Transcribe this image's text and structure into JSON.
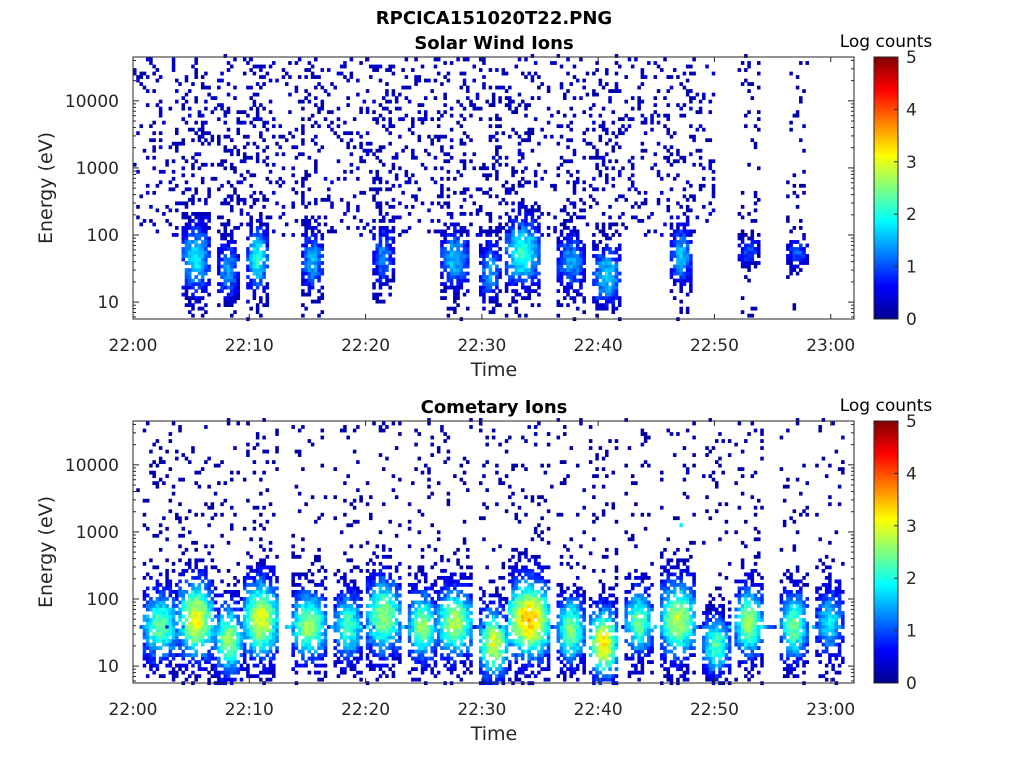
{
  "figure_title": "RPCICA151020T22.PNG",
  "chart_data": [
    {
      "type": "heatmap",
      "title": "Solar Wind Ions",
      "xlabel": "Time",
      "ylabel": "Energy (eV)",
      "x_tick_labels": [
        "22:00",
        "22:10",
        "22:20",
        "22:30",
        "22:40",
        "22:50",
        "23:00"
      ],
      "x_range_min": [
        0,
        62
      ],
      "y_tick_labels": [
        "10",
        "100",
        "1000",
        "10000"
      ],
      "y_range_eV": [
        5.6,
        45000
      ],
      "y_scale": "log",
      "colorbar_label": "Log counts",
      "colorbar_ticks": [
        "0",
        "1",
        "2",
        "3",
        "4",
        "5"
      ],
      "color_range": [
        0,
        5
      ],
      "colormap": "jet",
      "sparse_background": {
        "t_range_min": [
          0,
          50
        ],
        "log_e_range": [
          2.0,
          4.6
        ],
        "typical_log_counts": 0.3
      },
      "bursts": [
        {
          "t": 5.2,
          "e_eV": 45,
          "width_min": 0.6,
          "spread_dec": 0.35,
          "peak": 1.8
        },
        {
          "t": 8.0,
          "e_eV": 30,
          "width_min": 0.5,
          "spread_dec": 0.3,
          "peak": 1.4
        },
        {
          "t": 10.6,
          "e_eV": 45,
          "width_min": 0.5,
          "spread_dec": 0.3,
          "peak": 2.1
        },
        {
          "t": 15.4,
          "e_eV": 40,
          "width_min": 0.5,
          "spread_dec": 0.3,
          "peak": 1.5
        },
        {
          "t": 21.5,
          "e_eV": 50,
          "width_min": 0.5,
          "spread_dec": 0.3,
          "peak": 1.3
        },
        {
          "t": 27.5,
          "e_eV": 45,
          "width_min": 0.6,
          "spread_dec": 0.3,
          "peak": 1.6
        },
        {
          "t": 30.5,
          "e_eV": 30,
          "width_min": 0.5,
          "spread_dec": 0.3,
          "peak": 1.5
        },
        {
          "t": 33.5,
          "e_eV": 55,
          "width_min": 1.0,
          "spread_dec": 0.35,
          "peak": 2.1
        },
        {
          "t": 37.5,
          "e_eV": 40,
          "width_min": 0.6,
          "spread_dec": 0.3,
          "peak": 1.4
        },
        {
          "t": 40.5,
          "e_eV": 25,
          "width_min": 0.6,
          "spread_dec": 0.3,
          "peak": 1.7
        },
        {
          "t": 47.0,
          "e_eV": 50,
          "width_min": 0.5,
          "spread_dec": 0.3,
          "peak": 1.6
        },
        {
          "t": 52.8,
          "e_eV": 55,
          "width_min": 0.5,
          "spread_dec": 0.15,
          "peak": 1.0
        },
        {
          "t": 57.0,
          "e_eV": 55,
          "width_min": 0.4,
          "spread_dec": 0.15,
          "peak": 1.0
        }
      ]
    },
    {
      "type": "heatmap",
      "title": "Cometary Ions",
      "xlabel": "Time",
      "ylabel": "Energy (eV)",
      "x_tick_labels": [
        "22:00",
        "22:10",
        "22:20",
        "22:30",
        "22:40",
        "22:50",
        "23:00"
      ],
      "x_range_min": [
        0,
        62
      ],
      "y_tick_labels": [
        "10",
        "100",
        "1000",
        "10000"
      ],
      "y_range_eV": [
        5.6,
        45000
      ],
      "y_scale": "log",
      "colorbar_label": "Log counts",
      "colorbar_ticks": [
        "0",
        "1",
        "2",
        "3",
        "4",
        "5"
      ],
      "color_range": [
        0,
        5
      ],
      "colormap": "jet",
      "band_eV": 40,
      "bursts": [
        {
          "t": 2.3,
          "e_eV": 40,
          "width_min": 0.9,
          "spread_dec": 0.35,
          "peak": 2.4
        },
        {
          "t": 5.3,
          "e_eV": 50,
          "width_min": 0.9,
          "spread_dec": 0.4,
          "peak": 3.1
        },
        {
          "t": 8.0,
          "e_eV": 25,
          "width_min": 0.8,
          "spread_dec": 0.35,
          "peak": 2.7
        },
        {
          "t": 10.8,
          "e_eV": 50,
          "width_min": 0.9,
          "spread_dec": 0.4,
          "peak": 3.0
        },
        {
          "t": 15.0,
          "e_eV": 40,
          "width_min": 0.9,
          "spread_dec": 0.35,
          "peak": 2.7
        },
        {
          "t": 18.4,
          "e_eV": 40,
          "width_min": 0.8,
          "spread_dec": 0.35,
          "peak": 2.2
        },
        {
          "t": 21.3,
          "e_eV": 55,
          "width_min": 0.9,
          "spread_dec": 0.4,
          "peak": 2.6
        },
        {
          "t": 24.7,
          "e_eV": 40,
          "width_min": 0.8,
          "spread_dec": 0.35,
          "peak": 2.6
        },
        {
          "t": 27.5,
          "e_eV": 45,
          "width_min": 1.0,
          "spread_dec": 0.35,
          "peak": 2.8
        },
        {
          "t": 30.8,
          "e_eV": 22,
          "width_min": 0.8,
          "spread_dec": 0.35,
          "peak": 3.0
        },
        {
          "t": 33.8,
          "e_eV": 50,
          "width_min": 1.2,
          "spread_dec": 0.4,
          "peak": 3.5
        },
        {
          "t": 37.5,
          "e_eV": 35,
          "width_min": 0.8,
          "spread_dec": 0.35,
          "peak": 2.5
        },
        {
          "t": 40.4,
          "e_eV": 22,
          "width_min": 0.8,
          "spread_dec": 0.35,
          "peak": 3.3
        },
        {
          "t": 43.5,
          "e_eV": 45,
          "width_min": 0.8,
          "spread_dec": 0.35,
          "peak": 2.4
        },
        {
          "t": 46.8,
          "e_eV": 50,
          "width_min": 0.9,
          "spread_dec": 0.4,
          "peak": 2.8
        },
        {
          "t": 50.0,
          "e_eV": 20,
          "width_min": 0.6,
          "spread_dec": 0.3,
          "peak": 2.3
        },
        {
          "t": 52.8,
          "e_eV": 45,
          "width_min": 0.8,
          "spread_dec": 0.35,
          "peak": 2.7
        },
        {
          "t": 56.8,
          "e_eV": 40,
          "width_min": 0.8,
          "spread_dec": 0.35,
          "peak": 2.4
        },
        {
          "t": 59.8,
          "e_eV": 45,
          "width_min": 0.6,
          "spread_dec": 0.35,
          "peak": 1.8
        }
      ],
      "outlier_points": [
        {
          "t": 0.3,
          "e_eV": 4000,
          "log_counts": 0.1
        },
        {
          "t": 3.0,
          "e_eV": 3000,
          "log_counts": 0.1
        },
        {
          "t": 5.2,
          "e_eV": 8000,
          "log_counts": 0.1
        },
        {
          "t": 9.8,
          "e_eV": 3000,
          "log_counts": 0.1
        },
        {
          "t": 11.3,
          "e_eV": 4200,
          "log_counts": 0.1
        },
        {
          "t": 13.5,
          "e_eV": 900,
          "log_counts": 0.1
        },
        {
          "t": 28.0,
          "e_eV": 9500,
          "log_counts": 0.1
        },
        {
          "t": 30.3,
          "e_eV": 2400,
          "log_counts": 0.1
        },
        {
          "t": 33.5,
          "e_eV": 10000,
          "log_counts": 0.1
        },
        {
          "t": 35.8,
          "e_eV": 4500,
          "log_counts": 0.1
        },
        {
          "t": 36.7,
          "e_eV": 10500,
          "log_counts": 0.1
        },
        {
          "t": 39.8,
          "e_eV": 1600,
          "log_counts": 0.1
        },
        {
          "t": 44.2,
          "e_eV": 1800,
          "log_counts": 0.1
        },
        {
          "t": 46.5,
          "e_eV": 1700,
          "log_counts": 0.1
        },
        {
          "t": 47.0,
          "e_eV": 1300,
          "log_counts": 1.8
        }
      ]
    }
  ]
}
